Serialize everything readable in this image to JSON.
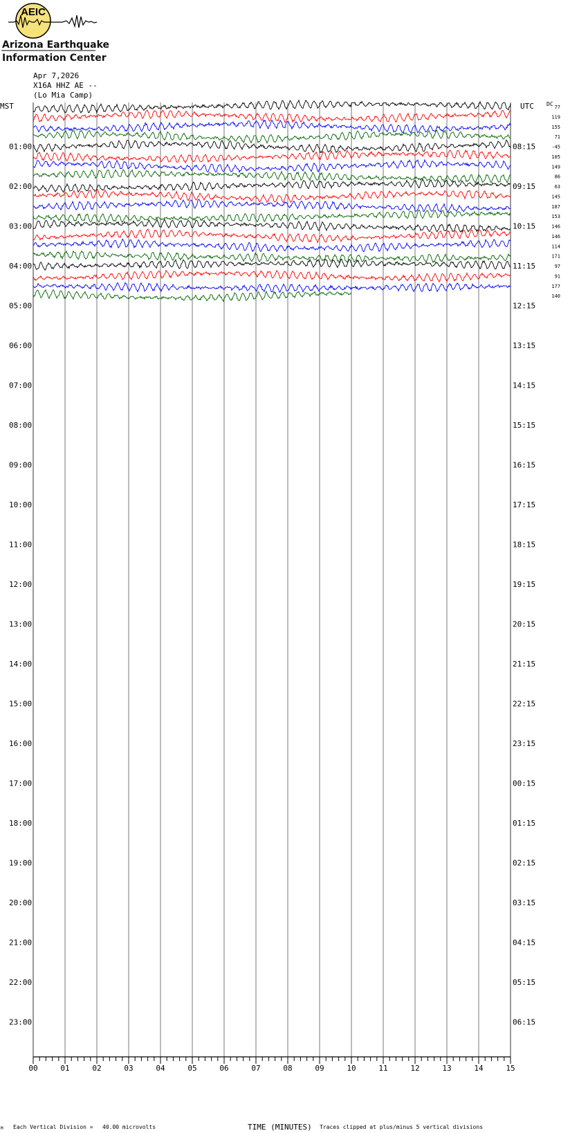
{
  "header": {
    "logo_text": "AEIC",
    "org_line1": "Arizona Earthquake",
    "org_line2": "Information Center",
    "date": "Apr 7,2026",
    "station": "X16A HHZ AE --",
    "location": "(Lo Mia Camp)"
  },
  "colors": {
    "traces": [
      "#000000",
      "#ff0000",
      "#0000ff",
      "#006400"
    ],
    "logo_fill": "#f5e27a",
    "grid": "#555555"
  },
  "chart_data": {
    "type": "helicorder",
    "left_axis_label": "MST",
    "right_axis_label": "UTC",
    "dc_label": "DC",
    "left_hour_labels": [
      "01:00",
      "02:00",
      "03:00",
      "04:00",
      "05:00",
      "06:00",
      "07:00",
      "08:00",
      "09:00",
      "10:00",
      "11:00",
      "12:00",
      "13:00",
      "14:00",
      "15:00",
      "16:00",
      "17:00",
      "18:00",
      "19:00",
      "20:00",
      "21:00",
      "22:00",
      "23:00"
    ],
    "right_hour_labels": [
      "08:15",
      "09:15",
      "10:15",
      "11:15",
      "12:15",
      "13:15",
      "14:15",
      "15:15",
      "16:15",
      "17:15",
      "18:15",
      "19:15",
      "20:15",
      "21:15",
      "22:15",
      "23:15",
      "00:15",
      "01:15",
      "02:15",
      "03:15",
      "04:15",
      "05:15",
      "06:15"
    ],
    "dc_offsets": [
      77,
      119,
      155,
      71,
      -45,
      105,
      149,
      86,
      63,
      145,
      187,
      153,
      146,
      146,
      114,
      171,
      97,
      91,
      177,
      140
    ],
    "x_ticks": [
      "00",
      "01",
      "02",
      "03",
      "04",
      "05",
      "06",
      "07",
      "08",
      "09",
      "10",
      "11",
      "12",
      "13",
      "14",
      "15"
    ],
    "xlabel": "TIME (MINUTES)",
    "minutes_per_line": 15,
    "lines_per_hour": 4,
    "total_hours": 24,
    "traces_recorded": 20,
    "last_trace_end_minute": 10,
    "color_cycle": [
      "black",
      "red",
      "blue",
      "green"
    ]
  },
  "footer": {
    "corner_mark": "M",
    "vertical_division": "Each Vertical Division =",
    "microvolts": "40.00 microvolts",
    "clip_note": "Traces clipped at plus/minus 5 vertical divisions"
  }
}
